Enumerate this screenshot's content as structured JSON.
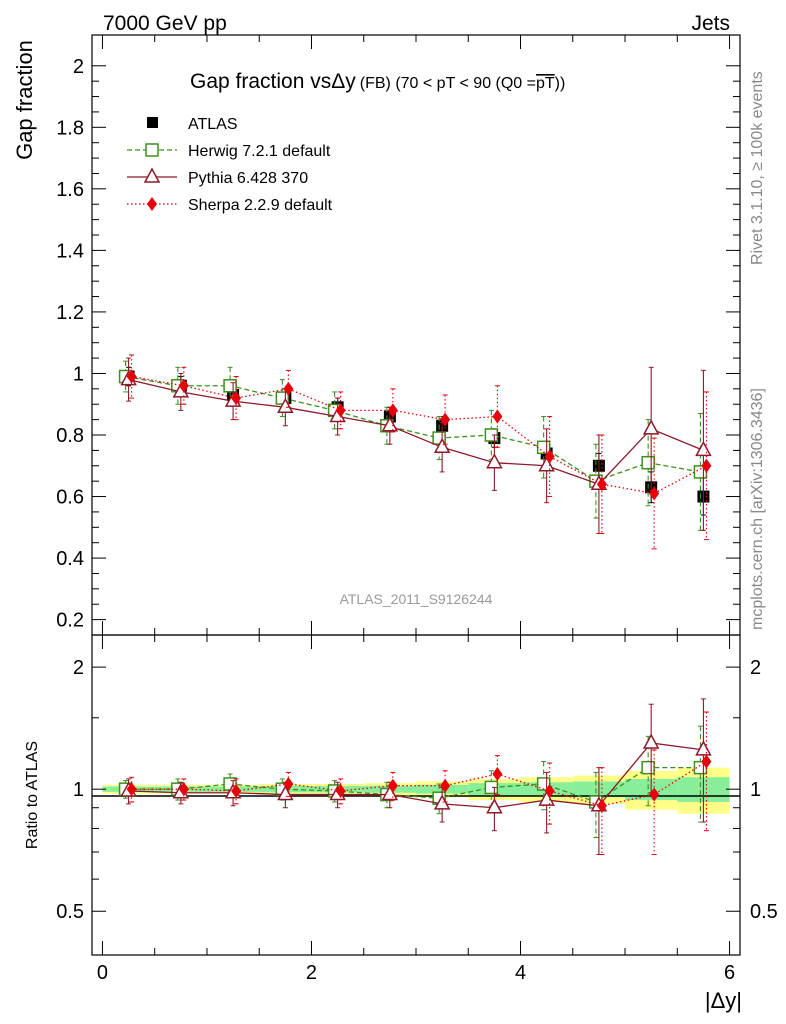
{
  "header": {
    "left": "7000 GeV pp",
    "right": "Jets"
  },
  "side_labels": {
    "rivet": "Rivet 3.1.10, ≥ 100k events",
    "mcplots": "mcplots.cern.ch [arXiv:1306.3436]"
  },
  "chart_data": [
    {
      "id": "main",
      "type": "line",
      "title": "Gap fraction vsΔy (FB) (70 < pT <  90 (Q0 =pT))",
      "title_parts": {
        "main": "Gap fraction vs",
        "delta": "Δy",
        "small": "(FB) (70 < pT <  90 (Q0 =",
        "pt_bar": "pT",
        "close": "))"
      },
      "ylabel": "Gap fraction",
      "xlabel": "|Δy|",
      "xlim": [
        -0.1,
        6.1
      ],
      "ylim": [
        0.15,
        2.1
      ],
      "yticks": [
        0.2,
        0.4,
        0.6,
        0.8,
        1,
        1.2,
        1.4,
        1.6,
        1.8,
        2
      ],
      "ytick_labels": [
        "0.2",
        "0.4",
        "0.6",
        "0.8",
        "1",
        "1.2",
        "1.4",
        "1.6",
        "1.8",
        "2"
      ],
      "watermark": "ATLAS_2011_S9126244",
      "legend_position": "top-left",
      "x": [
        0.25,
        0.75,
        1.25,
        1.75,
        2.25,
        2.75,
        3.25,
        3.75,
        4.25,
        4.75,
        5.25,
        5.75
      ],
      "series": [
        {
          "name": "ATLAS",
          "style": "data",
          "color": "#000000",
          "values": [
            0.99,
            0.96,
            0.93,
            0.92,
            0.89,
            0.86,
            0.83,
            0.79,
            0.74,
            0.7,
            0.63,
            0.6
          ],
          "errors": [
            0.03,
            0.03,
            0.03,
            0.03,
            0.03,
            0.03,
            0.03,
            0.03,
            0.04,
            0.04,
            0.05,
            0.06
          ]
        },
        {
          "name": "Herwig 7.2.1 default",
          "style": "herwig",
          "color": "#3f8f1f",
          "values": [
            0.99,
            0.96,
            0.96,
            0.92,
            0.88,
            0.83,
            0.79,
            0.8,
            0.76,
            0.65,
            0.71,
            0.68
          ],
          "errors": [
            0.05,
            0.06,
            0.06,
            0.06,
            0.06,
            0.06,
            0.07,
            0.08,
            0.1,
            0.12,
            0.14,
            0.19
          ]
        },
        {
          "name": "Pythia 6.428 370",
          "style": "pythia",
          "color": "#8c1a2a",
          "values": [
            0.98,
            0.94,
            0.91,
            0.89,
            0.86,
            0.83,
            0.76,
            0.71,
            0.7,
            0.64,
            0.82,
            0.75
          ],
          "errors": [
            0.07,
            0.06,
            0.06,
            0.06,
            0.06,
            0.06,
            0.08,
            0.09,
            0.12,
            0.16,
            0.2,
            0.26
          ]
        },
        {
          "name": "Sherpa 2.2.9 default",
          "style": "sherpa",
          "color": "#e8000b",
          "values": [
            0.99,
            0.96,
            0.92,
            0.95,
            0.88,
            0.88,
            0.85,
            0.86,
            0.73,
            0.64,
            0.61,
            0.7
          ],
          "errors": [
            0.07,
            0.06,
            0.07,
            0.06,
            0.06,
            0.07,
            0.08,
            0.1,
            0.13,
            0.16,
            0.18,
            0.24
          ]
        }
      ]
    },
    {
      "id": "ratio",
      "type": "line",
      "ylabel": "Ratio to ATLAS",
      "xlabel": "|Δy|",
      "xlim": [
        -0.1,
        6.1
      ],
      "ylim": [
        0.39,
        2.4
      ],
      "yscale": "log",
      "yticks": [
        0.5,
        1,
        2
      ],
      "ytick_labels": [
        "0.5",
        "1",
        "2"
      ],
      "xticks": [
        0,
        2,
        4,
        6
      ],
      "xtick_labels": [
        "0",
        "2",
        "4",
        "6"
      ],
      "x_edges": [
        0,
        0.5,
        1,
        1.5,
        2,
        2.5,
        3,
        3.5,
        4,
        4.5,
        5,
        5.5,
        6
      ],
      "band_green": [
        0.015,
        0.015,
        0.015,
        0.018,
        0.018,
        0.02,
        0.025,
        0.035,
        0.04,
        0.045,
        0.06,
        0.07
      ],
      "band_yellow": [
        0.025,
        0.025,
        0.025,
        0.03,
        0.03,
        0.035,
        0.045,
        0.06,
        0.07,
        0.08,
        0.11,
        0.13
      ],
      "x": [
        0.25,
        0.75,
        1.25,
        1.75,
        2.25,
        2.75,
        3.25,
        3.75,
        4.25,
        4.75,
        5.25,
        5.75
      ],
      "series": [
        {
          "name": "Herwig 7.2.1 default",
          "style": "herwig",
          "color": "#3f8f1f",
          "values": [
            1.0,
            1.0,
            1.03,
            1.0,
            0.99,
            0.97,
            0.95,
            1.01,
            1.03,
            0.93,
            1.13,
            1.13
          ],
          "errors": [
            0.05,
            0.06,
            0.06,
            0.06,
            0.06,
            0.07,
            0.08,
            0.1,
            0.14,
            0.17,
            0.22,
            0.3
          ]
        },
        {
          "name": "Pythia 6.428 370",
          "style": "pythia",
          "color": "#8c1a2a",
          "values": [
            0.99,
            0.98,
            0.98,
            0.97,
            0.97,
            0.97,
            0.92,
            0.9,
            0.94,
            0.91,
            1.3,
            1.25
          ],
          "errors": [
            0.07,
            0.06,
            0.07,
            0.07,
            0.07,
            0.07,
            0.09,
            0.11,
            0.16,
            0.22,
            0.32,
            0.42
          ]
        },
        {
          "name": "Sherpa 2.2.9 default",
          "style": "sherpa",
          "color": "#e8000b",
          "values": [
            1.0,
            1.0,
            0.99,
            1.03,
            0.99,
            1.02,
            1.02,
            1.09,
            0.99,
            0.91,
            0.97,
            1.17
          ],
          "errors": [
            0.07,
            0.06,
            0.07,
            0.07,
            0.07,
            0.08,
            0.09,
            0.12,
            0.17,
            0.22,
            0.28,
            0.38
          ]
        }
      ]
    }
  ]
}
